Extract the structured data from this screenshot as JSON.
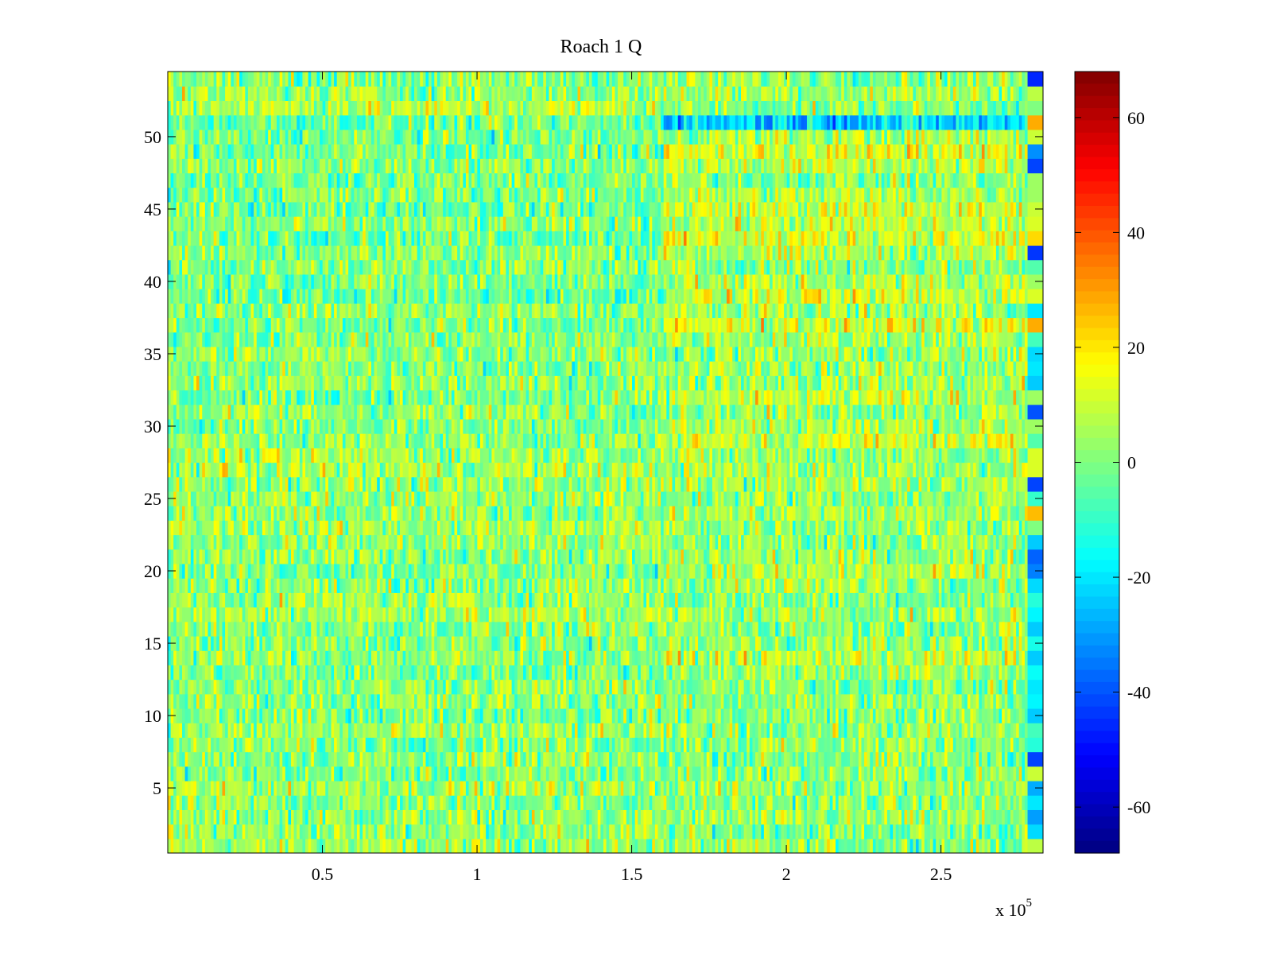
{
  "chart_data": {
    "type": "heatmap",
    "title": "Roach 1 Q",
    "xlabel": "",
    "ylabel": "",
    "xlim": [
      0,
      283000
    ],
    "ylim": [
      0.5,
      54.5
    ],
    "rows": 54,
    "x_ticks": [
      50000,
      100000,
      150000,
      200000,
      250000
    ],
    "x_tick_labels": [
      "0.5",
      "1",
      "1.5",
      "2",
      "2.5"
    ],
    "x_exponent_label": "x 10",
    "x_exponent_power": "5",
    "y_ticks": [
      5,
      10,
      15,
      20,
      25,
      30,
      35,
      40,
      45,
      50
    ],
    "y_tick_labels": [
      "5",
      "10",
      "15",
      "20",
      "25",
      "30",
      "35",
      "40",
      "45",
      "50"
    ],
    "colorbar": {
      "colormap": "jet",
      "clim": [
        -68,
        68
      ],
      "ticks": [
        -60,
        -40,
        -20,
        0,
        20,
        40,
        60
      ],
      "tick_labels": [
        "-60",
        "-40",
        "-20",
        "0",
        "20",
        "40",
        "60"
      ],
      "placement": "right"
    },
    "grid": false,
    "noise_regime_break_x": 160000,
    "row_mean_before_break": [
      4,
      3,
      2,
      1,
      6,
      -1,
      2,
      1,
      3,
      0,
      2,
      3,
      -1,
      2,
      0,
      1,
      6,
      4,
      2,
      0,
      1,
      3,
      5,
      2,
      4,
      3,
      6,
      5,
      2,
      1,
      3,
      -2,
      2,
      0,
      3,
      1,
      -1,
      2,
      -4,
      0,
      1,
      2,
      -1,
      0,
      -2,
      0,
      -1,
      2,
      -1,
      -2,
      -3,
      8,
      3,
      1
    ],
    "row_mean_after_break": [
      2,
      0,
      2,
      1,
      4,
      2,
      1,
      3,
      2,
      1,
      2,
      0,
      4,
      8,
      3,
      2,
      4,
      1,
      5,
      6,
      4,
      2,
      4,
      5,
      2,
      4,
      5,
      3,
      10,
      6,
      4,
      8,
      5,
      4,
      2,
      6,
      12,
      4,
      10,
      6,
      2,
      6,
      12,
      8,
      10,
      6,
      1,
      8,
      12,
      6,
      -22,
      1,
      6,
      3
    ],
    "row_final_values": [
      8,
      -22,
      -30,
      -20,
      -28,
      10,
      -42,
      -12,
      -8,
      -24,
      -18,
      -20,
      -16,
      -24,
      -14,
      -24,
      -18,
      -12,
      -22,
      -34,
      -38,
      -24,
      0,
      26,
      -10,
      -42,
      12,
      12,
      -6,
      4,
      -40,
      4,
      -24,
      -20,
      -22,
      -8,
      28,
      -20,
      12,
      4,
      -6,
      -44,
      22,
      12,
      10,
      4,
      4,
      -42,
      -32,
      10,
      28,
      0,
      8,
      -46
    ]
  }
}
